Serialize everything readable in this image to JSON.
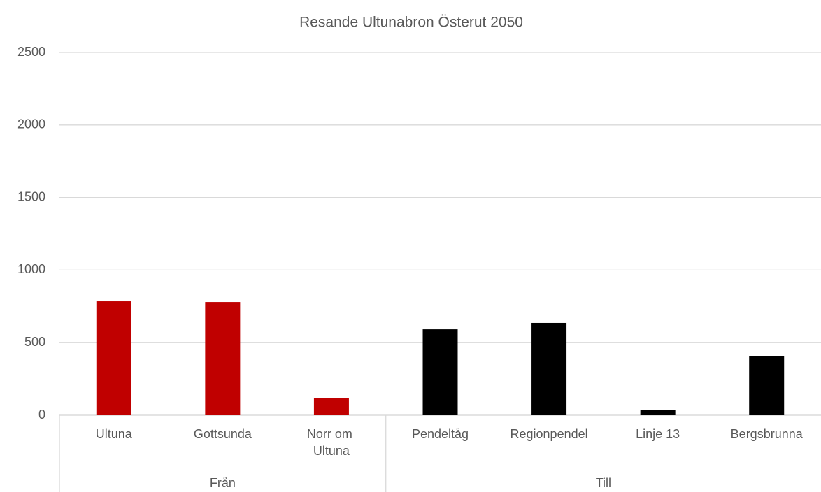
{
  "chart_data": {
    "type": "bar",
    "title": "Resande Ultunabron Österut 2050",
    "groups": [
      {
        "name": "Från",
        "color": "#c00000",
        "categories": [
          "Ultuna",
          "Gottsunda",
          "Norr om Ultuna"
        ],
        "values": [
          785,
          780,
          120
        ]
      },
      {
        "name": "Till",
        "color": "#000000",
        "categories": [
          "Pendeltåg",
          "Regionpendel",
          "Linje 13",
          "Bergsbrunna"
        ],
        "values": [
          592,
          636,
          34,
          409
        ]
      }
    ],
    "ylim": [
      0,
      2500
    ],
    "yticks": [
      0,
      500,
      1000,
      1500,
      2000,
      2500
    ],
    "grid": true
  }
}
